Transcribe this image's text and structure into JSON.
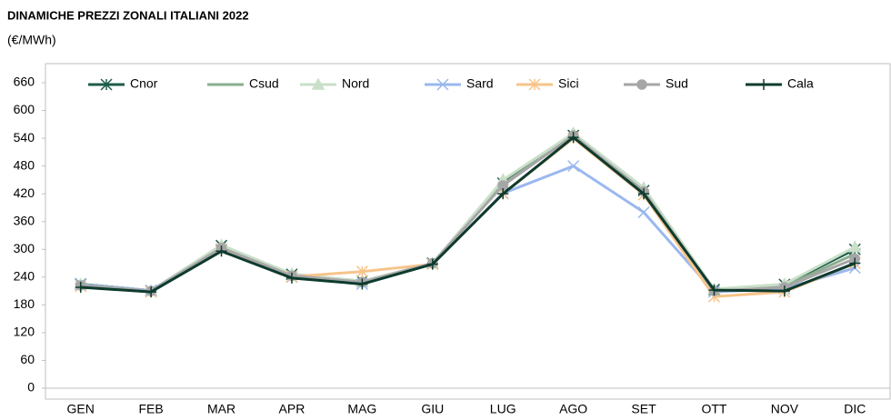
{
  "chart_data": {
    "type": "line",
    "title": "DINAMICHE PREZZI ZONALI ITALIANI 2022",
    "subtitle": "(€/MWh)",
    "categories": [
      "GEN",
      "FEB",
      "MAR",
      "APR",
      "MAG",
      "GIU",
      "LUG",
      "AGO",
      "SET",
      "OTT",
      "NOV",
      "DIC"
    ],
    "series": [
      {
        "name": "Cnor",
        "color": "#1e5c4a",
        "marker": "star",
        "values": [
          225,
          211,
          308,
          246,
          231,
          270,
          443,
          546,
          427,
          213,
          224,
          300
        ]
      },
      {
        "name": "Csud",
        "color": "#8aae8f",
        "marker": "none",
        "values": [
          224,
          211,
          306,
          244,
          229,
          270,
          441,
          546,
          425,
          210,
          220,
          290
        ]
      },
      {
        "name": "Nord",
        "color": "#c9dfc9",
        "marker": "triangle",
        "values": [
          224,
          211,
          309,
          247,
          231,
          270,
          450,
          551,
          433,
          214,
          225,
          305
        ]
      },
      {
        "name": "Sard",
        "color": "#9ab8ef",
        "marker": "x",
        "values": [
          224,
          211,
          301,
          240,
          225,
          268,
          421,
          480,
          380,
          208,
          215,
          260
        ]
      },
      {
        "name": "Sici",
        "color": "#f7c48a",
        "marker": "asterisk",
        "values": [
          220,
          208,
          300,
          241,
          252,
          268,
          420,
          540,
          418,
          198,
          208,
          270
        ]
      },
      {
        "name": "Sud",
        "color": "#a6a6a6",
        "marker": "circle",
        "values": [
          222,
          210,
          303,
          243,
          229,
          270,
          438,
          546,
          425,
          210,
          218,
          280
        ]
      },
      {
        "name": "Cala",
        "color": "#0d3b2e",
        "marker": "plus",
        "values": [
          218,
          208,
          296,
          238,
          225,
          268,
          420,
          542,
          420,
          212,
          210,
          270
        ]
      }
    ],
    "ylim": [
      0,
      660
    ],
    "yticks": [
      0,
      60,
      120,
      180,
      240,
      300,
      360,
      420,
      480,
      540,
      600,
      660
    ],
    "legend": "top"
  }
}
